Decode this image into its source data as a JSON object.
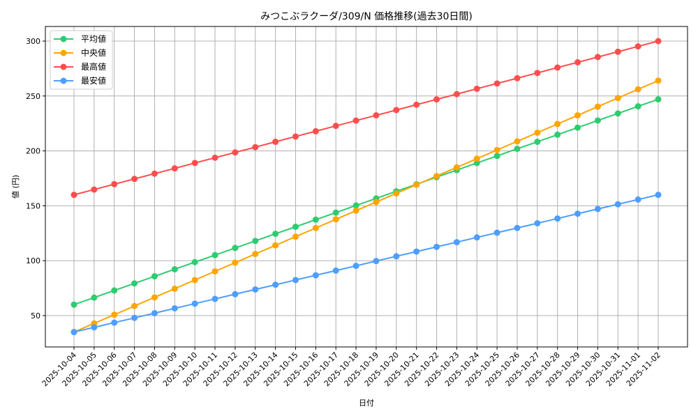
{
  "chart_data": {
    "type": "line",
    "title": "みつこぶラクーダ/309/N 価格推移(過去30日間)",
    "xlabel": "日付",
    "ylabel": "値 (円)",
    "ylim": [
      21.5,
      313
    ],
    "yticks": [
      50,
      100,
      150,
      200,
      250,
      300
    ],
    "grid": true,
    "legend_position": "upper left",
    "categories": [
      "2025-10-04",
      "2025-10-05",
      "2025-10-06",
      "2025-10-07",
      "2025-10-08",
      "2025-10-09",
      "2025-10-10",
      "2025-10-11",
      "2025-10-12",
      "2025-10-13",
      "2025-10-14",
      "2025-10-15",
      "2025-10-16",
      "2025-10-17",
      "2025-10-18",
      "2025-10-19",
      "2025-10-20",
      "2025-10-21",
      "2025-10-22",
      "2025-10-23",
      "2025-10-24",
      "2025-10-25",
      "2025-10-26",
      "2025-10-27",
      "2025-10-28",
      "2025-10-29",
      "2025-10-30",
      "2025-10-31",
      "2025-11-01",
      "2025-11-02"
    ],
    "series": [
      {
        "name": "平均値",
        "color": "#2ecc71",
        "values": [
          60,
          66.4,
          72.9,
          79.3,
          85.8,
          92.2,
          98.7,
          105.1,
          111.6,
          118.0,
          124.5,
          130.9,
          137.4,
          143.8,
          150.3,
          156.7,
          163.2,
          169.6,
          176.1,
          182.5,
          189.0,
          195.4,
          201.9,
          208.3,
          214.8,
          221.2,
          227.7,
          234.1,
          240.6,
          247
        ]
      },
      {
        "name": "中央値",
        "color": "#ffa500",
        "values": [
          35,
          42.9,
          50.8,
          58.7,
          66.6,
          74.5,
          82.4,
          90.3,
          98.2,
          106.1,
          114.0,
          121.9,
          129.8,
          137.7,
          145.6,
          153.4,
          161.3,
          169.2,
          177.1,
          185.0,
          192.9,
          200.8,
          208.7,
          216.6,
          224.5,
          232.4,
          240.3,
          248.2,
          256.1,
          264
        ]
      },
      {
        "name": "最高値",
        "color": "#ff4d4d",
        "values": [
          160,
          164.8,
          169.7,
          174.5,
          179.3,
          184.1,
          189.0,
          193.8,
          198.6,
          203.4,
          208.3,
          213.1,
          217.9,
          222.8,
          227.6,
          232.4,
          237.2,
          242.1,
          246.9,
          251.7,
          256.6,
          261.4,
          266.2,
          271.0,
          275.9,
          280.7,
          285.5,
          290.3,
          295.2,
          300
        ]
      },
      {
        "name": "最安値",
        "color": "#4d9eff",
        "values": [
          35,
          39.3,
          43.6,
          47.9,
          52.2,
          56.6,
          60.9,
          65.2,
          69.5,
          73.8,
          78.1,
          82.4,
          86.7,
          91.0,
          95.3,
          99.7,
          104.0,
          108.3,
          112.6,
          116.9,
          121.2,
          125.5,
          129.8,
          134.1,
          138.4,
          142.8,
          147.1,
          151.4,
          155.7,
          160
        ]
      }
    ]
  }
}
